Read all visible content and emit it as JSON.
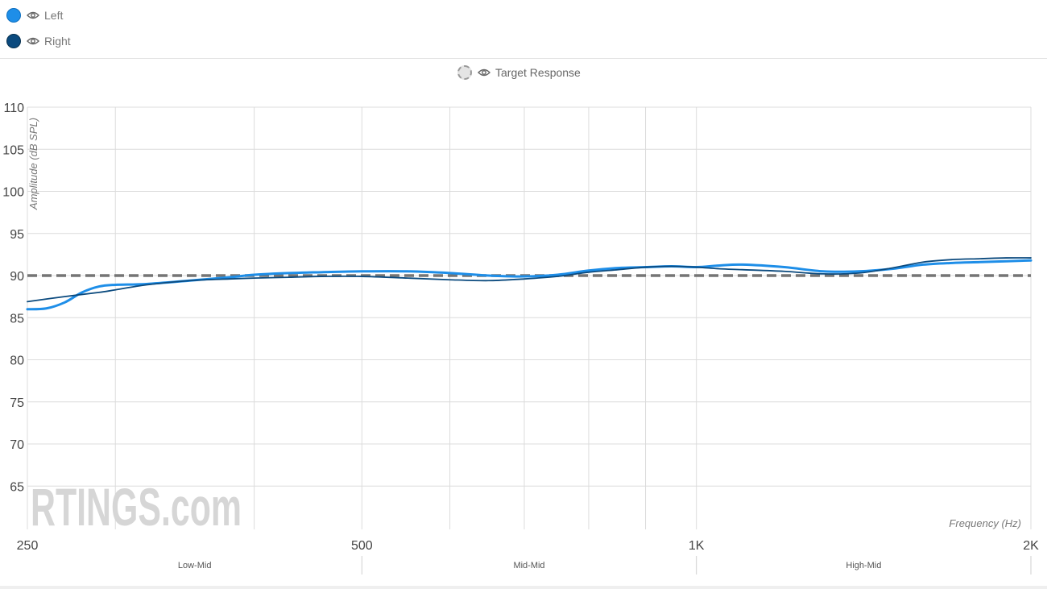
{
  "legend": {
    "series": [
      {
        "label": "Left",
        "color": "#1e8ee8",
        "icon": "eye-icon"
      },
      {
        "label": "Right",
        "color": "#0b4a7e",
        "icon": "eye-icon"
      }
    ],
    "target": {
      "label": "Target Response",
      "color": "#777777",
      "icon": "eye-icon"
    }
  },
  "watermark": "RTINGS.com",
  "chart_data": {
    "type": "line",
    "xscale": "log",
    "xlim": [
      250,
      2000
    ],
    "ylim": [
      60,
      110
    ],
    "yticks": [
      65,
      70,
      75,
      80,
      85,
      90,
      95,
      100,
      105,
      110
    ],
    "xgrid": [
      250,
      300,
      400,
      500,
      600,
      700,
      800,
      900,
      1000,
      2000
    ],
    "xtick_labels": [
      {
        "x": 250,
        "label": "250"
      },
      {
        "x": 500,
        "label": "500"
      },
      {
        "x": 1000,
        "label": "1K"
      },
      {
        "x": 2000,
        "label": "2K"
      }
    ],
    "bands": [
      {
        "label": "Low-Mid",
        "from": 250,
        "to": 500
      },
      {
        "label": "Mid-Mid",
        "from": 500,
        "to": 1000
      },
      {
        "label": "High-Mid",
        "from": 1000,
        "to": 2000
      }
    ],
    "xlabel": "Frequency (Hz)",
    "ylabel": "Amplitude (dB SPL)",
    "grid": true,
    "target": {
      "name": "Target Response",
      "y": 90
    },
    "series": [
      {
        "name": "Left",
        "color": "#1e8ee8",
        "x": [
          250,
          260,
          270,
          280,
          290,
          300,
          320,
          350,
          380,
          400,
          430,
          460,
          500,
          550,
          600,
          650,
          700,
          750,
          800,
          850,
          900,
          950,
          1000,
          1050,
          1100,
          1200,
          1300,
          1400,
          1500,
          1600,
          1700,
          1800,
          1900,
          2000
        ],
        "y": [
          86.0,
          86.1,
          86.8,
          88.0,
          88.7,
          88.9,
          89.0,
          89.4,
          89.8,
          90.1,
          90.3,
          90.4,
          90.5,
          90.5,
          90.3,
          90.0,
          89.9,
          90.1,
          90.6,
          90.9,
          91.0,
          91.1,
          91.0,
          91.2,
          91.3,
          91.0,
          90.5,
          90.5,
          90.8,
          91.3,
          91.5,
          91.6,
          91.7,
          91.8
        ]
      },
      {
        "name": "Right",
        "color": "#0b4a7e",
        "x": [
          250,
          270,
          290,
          300,
          320,
          350,
          380,
          400,
          430,
          460,
          500,
          550,
          600,
          650,
          700,
          750,
          800,
          850,
          900,
          950,
          1000,
          1050,
          1100,
          1200,
          1300,
          1400,
          1500,
          1600,
          1700,
          1800,
          1900,
          2000
        ],
        "y": [
          86.9,
          87.5,
          88.0,
          88.3,
          88.9,
          89.4,
          89.6,
          89.7,
          89.8,
          89.9,
          89.9,
          89.7,
          89.5,
          89.4,
          89.6,
          89.9,
          90.4,
          90.7,
          91.0,
          91.1,
          91.0,
          90.8,
          90.7,
          90.5,
          90.2,
          90.3,
          90.9,
          91.6,
          91.9,
          92.0,
          92.1,
          92.1
        ]
      }
    ]
  }
}
